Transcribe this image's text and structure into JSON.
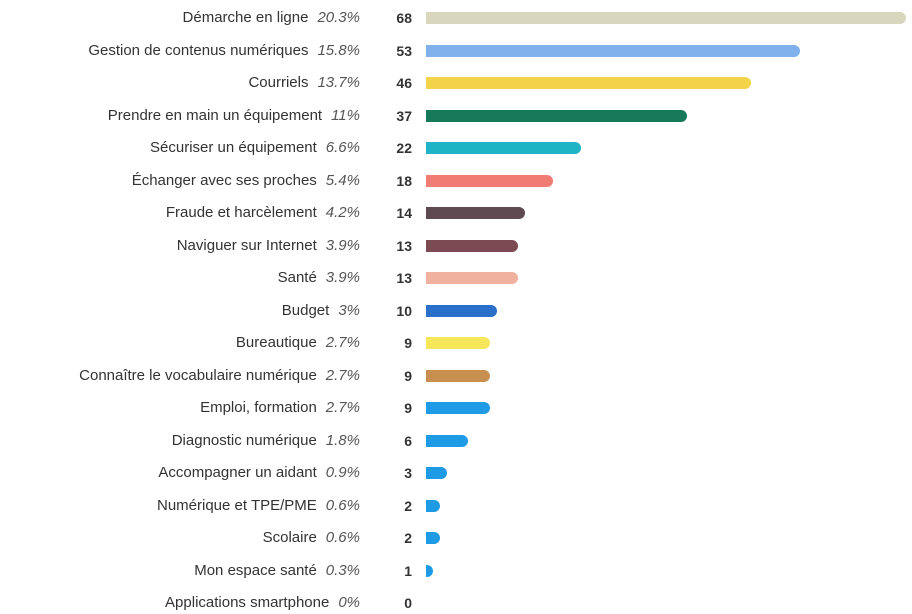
{
  "chart_data": {
    "type": "bar",
    "orientation": "horizontal",
    "categories": [
      "Démarche en ligne",
      "Gestion de contenus numériques",
      "Courriels",
      "Prendre en main un équipement",
      "Sécuriser un équipement",
      "Échanger avec ses proches",
      "Fraude et harcèlement",
      "Naviguer sur Internet",
      "Santé",
      "Budget",
      "Bureautique",
      "Connaître le vocabulaire numérique",
      "Emploi, formation",
      "Diagnostic numérique",
      "Accompagner un aidant",
      "Numérique et TPE/PME",
      "Scolaire",
      "Mon espace santé",
      "Applications smartphone"
    ],
    "percent_labels": [
      "20.3%",
      "15.8%",
      "13.7%",
      "11%",
      "6.6%",
      "5.4%",
      "4.2%",
      "3.9%",
      "3.9%",
      "3%",
      "2.7%",
      "2.7%",
      "2.7%",
      "1.8%",
      "0.9%",
      "0.6%",
      "0.6%",
      "0.3%",
      "0%"
    ],
    "values": [
      68,
      53,
      46,
      37,
      22,
      18,
      14,
      13,
      13,
      10,
      9,
      9,
      9,
      6,
      3,
      2,
      2,
      1,
      0
    ],
    "colors": [
      "#d8d6bc",
      "#80b1ea",
      "#f2d34a",
      "#17795a",
      "#1fb3c6",
      "#f07c74",
      "#5e4a50",
      "#7b4a53",
      "#f1b19f",
      "#2a6fca",
      "#f5e65a",
      "#c8904f",
      "#1f9be6",
      "#1f9be6",
      "#1f9be6",
      "#1f9be6",
      "#1f9be6",
      "#1f9be6",
      "#1f9be6"
    ]
  }
}
